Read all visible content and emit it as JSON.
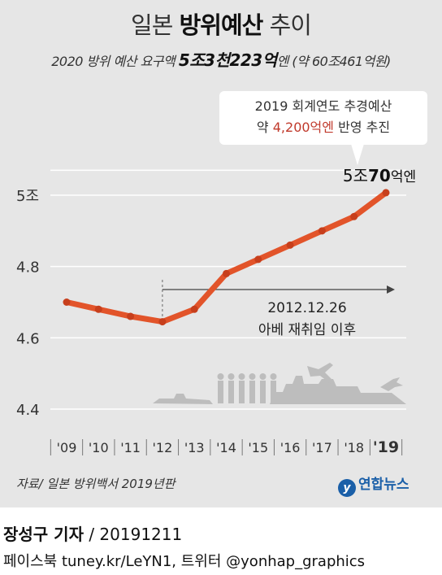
{
  "title": {
    "prefix": "일본",
    "bold": "방위예산",
    "suffix": "추이"
  },
  "subtitle": {
    "pre": "2020 방위 예산 요구액",
    "bold": "5조3천223억",
    "post": "엔 (약 60조461억원)"
  },
  "note": {
    "line1": "2019 회계연도 추경예산",
    "pre": "약",
    "highlight": "4,200억엔",
    "post": "반영 추진"
  },
  "chart_data": {
    "type": "line",
    "categories": [
      "'09",
      "'10",
      "'11",
      "'12",
      "'13",
      "'14",
      "'15",
      "'16",
      "'17",
      "'18",
      "'19"
    ],
    "values": [
      4.7,
      4.68,
      4.66,
      4.645,
      4.68,
      4.78,
      4.82,
      4.86,
      4.9,
      4.94,
      5.007
    ],
    "ylim": [
      4.4,
      5.0
    ],
    "yticks": [
      "4.4",
      "4.6",
      "4.8",
      "5조"
    ],
    "grid": true,
    "color": "#e2542a",
    "annotations": {
      "last_value": {
        "pre": "5조",
        "bold": "70",
        "post": "억엔"
      },
      "abe_date": "2012.12.26",
      "abe_label": "아베 재취임 이후"
    }
  },
  "source": "자료/ 일본 방위백서 2019년판",
  "logo": {
    "mark": "y",
    "text": "연합뉴스"
  },
  "footer": {
    "author": "장성구 기자",
    "date": "/ 20191211",
    "sns": "페이스북 tuney.kr/LeYN1, 트위터 @yonhap_graphics"
  }
}
